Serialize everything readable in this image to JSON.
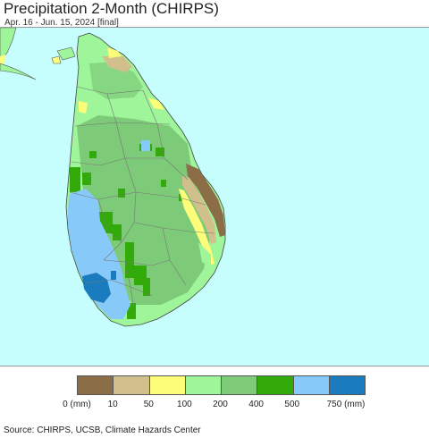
{
  "header": {
    "title": "Precipitation 2-Month (CHIRPS)",
    "subtitle": "Apr. 16 - Jun. 15, 2024 [final]"
  },
  "map": {
    "ocean_color": "#c6fdfd",
    "mainland_color": "#9ef59a",
    "boundary_color": "#777777"
  },
  "legend": {
    "colors": [
      "#8b6d47",
      "#d2c08c",
      "#fdfd7a",
      "#9ef59a",
      "#7dca78",
      "#32aa0a",
      "#87c9f8",
      "#1a7bbe"
    ],
    "labels": [
      "0 (mm)",
      "10",
      "50",
      "100",
      "200",
      "400",
      "500",
      "750 (mm)"
    ]
  },
  "footer": {
    "source": "Source: CHIRPS, UCSB, Climate Hazards Center"
  }
}
